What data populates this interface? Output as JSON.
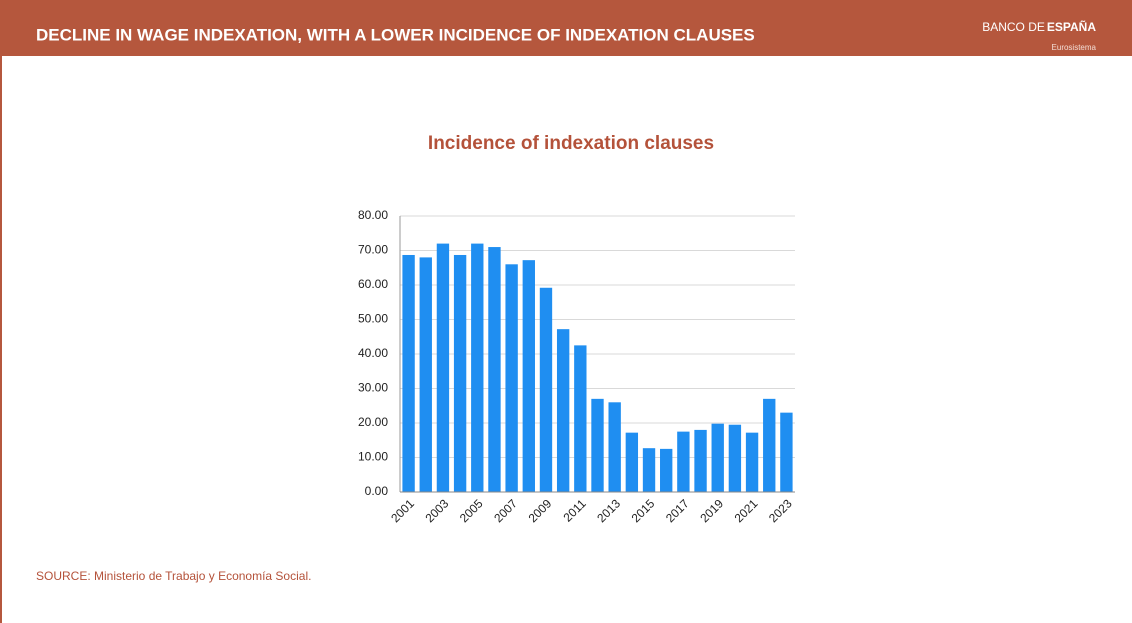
{
  "header": {
    "title": "DECLINE IN WAGE INDEXATION, WITH A LOWER INCIDENCE OF INDEXATION CLAUSES",
    "logo_main": "BANCO DE",
    "logo_bold": "ESPAÑA",
    "logo_sub": "Eurosistema"
  },
  "chart_data": {
    "type": "bar",
    "title": "Incidence of indexation clauses",
    "categories": [
      "2001",
      null,
      "2003",
      null,
      "2005",
      null,
      "2007",
      null,
      "2009",
      null,
      "2011",
      null,
      "2013",
      null,
      "2015",
      null,
      "2017",
      null,
      "2019",
      null,
      "2021",
      null,
      "2023"
    ],
    "values": [
      68.7,
      68,
      72,
      68.7,
      72,
      71,
      66,
      67.2,
      59.2,
      47.2,
      42.5,
      27,
      26,
      17.2,
      12.7,
      12.5,
      17.5,
      18,
      19.8,
      19.5,
      17.2,
      27,
      23
    ],
    "color": "#1f8ef1",
    "ylim": [
      0,
      80
    ],
    "yticks": [
      {
        "value": 0,
        "label": "0.00"
      },
      {
        "value": 10,
        "label": "10.00"
      },
      {
        "value": 20,
        "label": "20.00"
      },
      {
        "value": 30,
        "label": "30.00"
      },
      {
        "value": 40,
        "label": "40.00"
      },
      {
        "value": 50,
        "label": "50.00"
      },
      {
        "value": 60,
        "label": "60.00"
      },
      {
        "value": 70,
        "label": "70.00"
      },
      {
        "value": 80,
        "label": "80.00"
      }
    ],
    "grid": true
  },
  "source": "SOURCE: Ministerio de Trabajo y Economía Social."
}
